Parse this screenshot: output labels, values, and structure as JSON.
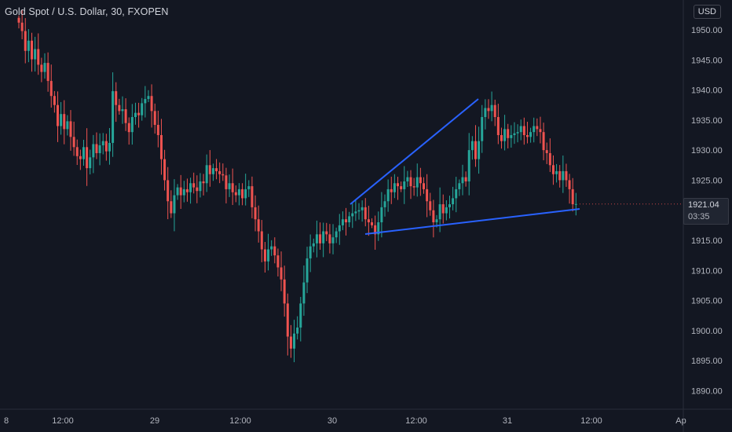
{
  "header": {
    "title": "Gold Spot / U.S. Dollar, 30, FXOPEN",
    "currency": "USD"
  },
  "price_tag": {
    "price": "1921.04",
    "countdown": "03:35"
  },
  "colors": {
    "background": "#131722",
    "up": "#26a69a",
    "down": "#ef5350",
    "trendline": "#2962ff",
    "axis_text": "#b2b5be",
    "axis_border": "#2a2e39"
  },
  "chart_data": {
    "type": "candlestick",
    "symbol": "XAUUSD",
    "interval": "30",
    "x_tick_labels": [
      "8",
      "12:00",
      "29",
      "12:00",
      "30",
      "12:00",
      "31",
      "12:00",
      "Ap"
    ],
    "y_tick_labels": [
      "1950.00",
      "1945.00",
      "1940.00",
      "1935.00",
      "1930.00",
      "1925.00",
      "1920.00",
      "1915.00",
      "1910.00",
      "1905.00",
      "1900.00",
      "1895.00",
      "1890.00"
    ],
    "ylim": [
      1888,
      1952.5
    ],
    "last_price": 1921.04,
    "close_series": [
      1951.2,
      1949.8,
      1946.5,
      1948.2,
      1945.1,
      1946.8,
      1944.2,
      1943.0,
      1944.5,
      1941.5,
      1939.0,
      1937.5,
      1934.0,
      1936.0,
      1933.5,
      1934.8,
      1932.2,
      1930.5,
      1929.0,
      1928.5,
      1930.5,
      1927.0,
      1928.8,
      1931.0,
      1929.5,
      1930.8,
      1931.5,
      1929.8,
      1931.2,
      1939.8,
      1937.5,
      1936.5,
      1936.8,
      1934.5,
      1933.0,
      1935.5,
      1936.2,
      1935.8,
      1937.8,
      1938.5,
      1939.0,
      1936.5,
      1934.2,
      1932.5,
      1928.5,
      1925.0,
      1921.5,
      1919.5,
      1922.5,
      1923.8,
      1922.5,
      1923.5,
      1923.0,
      1924.5,
      1923.8,
      1923.2,
      1924.8,
      1924.5,
      1927.5,
      1926.0,
      1927.0,
      1926.5,
      1926.0,
      1925.8,
      1923.5,
      1924.5,
      1923.0,
      1922.5,
      1923.5,
      1922.0,
      1923.5,
      1924.0,
      1920.5,
      1918.5,
      1916.5,
      1913.5,
      1911.5,
      1913.5,
      1914.0,
      1912.5,
      1910.5,
      1908.5,
      1904.5,
      1899.0,
      1897.0,
      1899.5,
      1900.5,
      1904.5,
      1908.0,
      1912.0,
      1914.0,
      1914.5,
      1916.0,
      1914.5,
      1916.5,
      1916.0,
      1914.5,
      1915.5,
      1916.5,
      1917.5,
      1918.5,
      1918.0,
      1919.0,
      1919.5,
      1919.8,
      1920.0,
      1920.5,
      1918.5,
      1918.0,
      1917.5,
      1916.0,
      1918.0,
      1920.5,
      1921.5,
      1923.5,
      1923.0,
      1924.5,
      1924.0,
      1923.5,
      1924.8,
      1925.5,
      1924.0,
      1923.8,
      1925.5,
      1924.5,
      1923.5,
      1921.5,
      1920.0,
      1918.0,
      1918.5,
      1921.0,
      1919.5,
      1920.5,
      1921.0,
      1922.0,
      1923.5,
      1924.5,
      1925.5,
      1924.8,
      1930.0,
      1931.5,
      1928.5,
      1931.5,
      1935.5,
      1937.0,
      1936.5,
      1937.5,
      1935.5,
      1932.5,
      1931.5,
      1933.5,
      1932.0,
      1932.5,
      1932.8,
      1933.0,
      1934.0,
      1932.5,
      1932.2,
      1933.0,
      1934.0,
      1933.5,
      1933.0,
      1930.0,
      1929.5,
      1927.5,
      1926.0,
      1926.5,
      1925.0,
      1926.5,
      1925.0,
      1923.5,
      1921.0,
      1921.04
    ],
    "trendlines": [
      {
        "from": {
          "date": "30",
          "price": 1921.0
        },
        "to": {
          "date": "31",
          "price": 1938.5
        }
      },
      {
        "from": {
          "date": "30",
          "price": 1916.2
        },
        "to": {
          "date": "31 12:00",
          "price": 1920.2
        }
      }
    ],
    "grid": false
  }
}
